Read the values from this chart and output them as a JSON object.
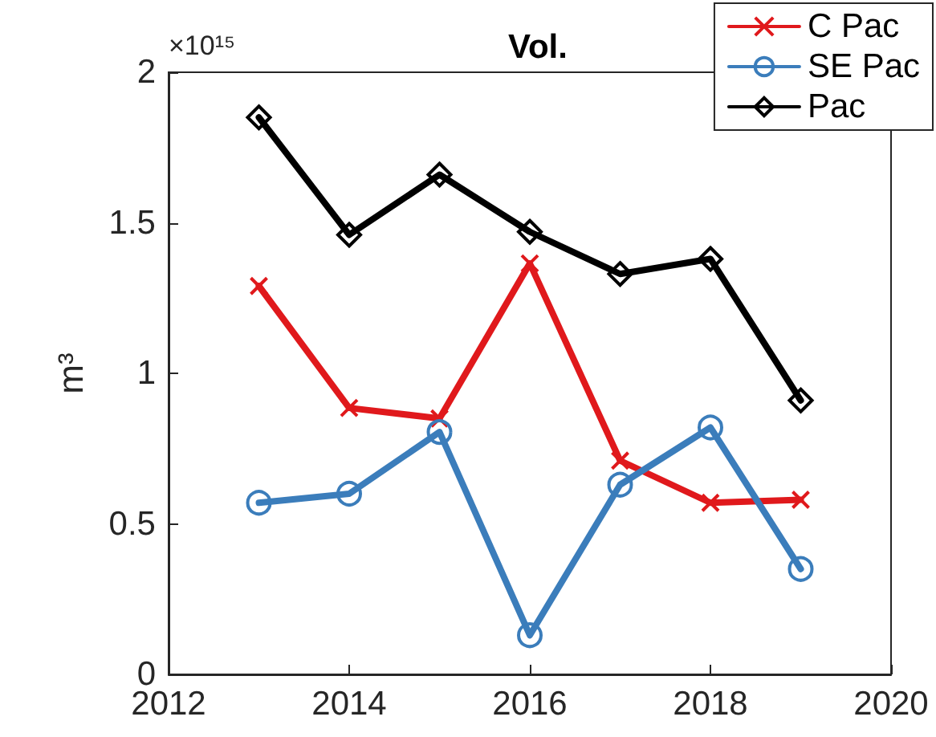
{
  "chart_data": {
    "type": "line",
    "title": "Vol.",
    "ylabel": "m³",
    "annotations": [
      "×10¹⁵"
    ],
    "x": [
      2013,
      2014,
      2015,
      2016,
      2017,
      2018,
      2019
    ],
    "series": [
      {
        "name": "C Pac",
        "color": "#e0191c",
        "marker": "cross",
        "values": [
          1.29,
          0.885,
          0.85,
          1.365,
          0.71,
          0.57,
          0.58
        ]
      },
      {
        "name": "SE Pac",
        "color": "#3b7dbb",
        "marker": "circle",
        "values": [
          0.57,
          0.6,
          0.805,
          0.13,
          0.63,
          0.82,
          0.35
        ]
      },
      {
        "name": "Pac",
        "color": "#000000",
        "marker": "diamond",
        "values": [
          1.85,
          1.46,
          1.66,
          1.47,
          1.33,
          1.38,
          0.91
        ]
      }
    ],
    "xlim": [
      2012,
      2020
    ],
    "xticks": [
      2012,
      2014,
      2016,
      2018,
      2020
    ],
    "ylim": [
      0,
      2
    ],
    "yticks": [
      0,
      0.5,
      1,
      1.5,
      2
    ],
    "grid": false,
    "legend": "top right",
    "line_style": "solid"
  }
}
